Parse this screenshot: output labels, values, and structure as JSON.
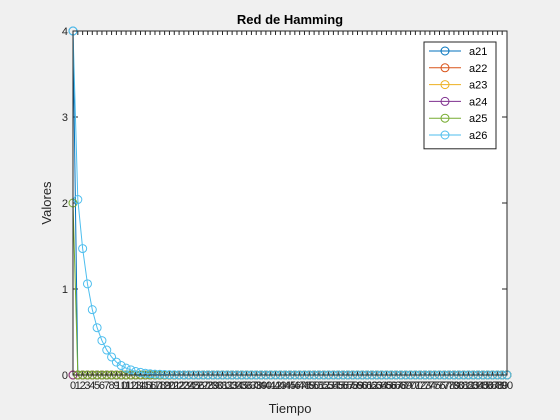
{
  "chart_data": {
    "type": "line",
    "title": "Red de Hamming",
    "xlabel": "Tiempo",
    "ylabel": "Valores",
    "xlim": [
      0,
      90
    ],
    "ylim": [
      0,
      4
    ],
    "yticks": [
      0,
      1,
      2,
      3,
      4
    ],
    "xticks": [
      0,
      1,
      2,
      3,
      4,
      5,
      6,
      7,
      8,
      9,
      10,
      11,
      12,
      13,
      14,
      15,
      16,
      17,
      18,
      19,
      20,
      21,
      22,
      23,
      24,
      25,
      26,
      27,
      28,
      29,
      30,
      31,
      32,
      33,
      34,
      35,
      36,
      37,
      38,
      39,
      40,
      41,
      42,
      43,
      44,
      45,
      46,
      47,
      48,
      49,
      50,
      51,
      52,
      53,
      54,
      55,
      56,
      57,
      58,
      59,
      60,
      61,
      62,
      63,
      64,
      65,
      66,
      67,
      68,
      69,
      70,
      71,
      72,
      73,
      74,
      75,
      76,
      77,
      78,
      79,
      80,
      81,
      82,
      83,
      84,
      85,
      86,
      87,
      88,
      89,
      90
    ],
    "grid": false,
    "legend_position": "top-right",
    "marker": "circle",
    "series": [
      {
        "name": "a21",
        "color": "#0072BD",
        "values": [
          4,
          0
        ]
      },
      {
        "name": "a22",
        "color": "#D95319",
        "values": [
          0,
          0
        ]
      },
      {
        "name": "a23",
        "color": "#EDB120",
        "values": [
          0,
          0
        ]
      },
      {
        "name": "a24",
        "color": "#7E2F8E",
        "values": [
          0,
          0
        ]
      },
      {
        "name": "a25",
        "color": "#77AC30",
        "values": [
          2,
          0
        ]
      },
      {
        "name": "a26",
        "color": "#4DBEEE",
        "values": [
          4,
          2.04,
          1.47,
          1.06,
          0.76,
          0.55,
          0.4,
          0.29,
          0.21,
          0.15,
          0.11,
          0.08,
          0.06,
          0.04,
          0.03,
          0.02,
          0.015,
          0.01,
          0.008,
          0.006,
          0.004,
          0.003,
          0.002,
          0.001
        ]
      }
    ]
  }
}
